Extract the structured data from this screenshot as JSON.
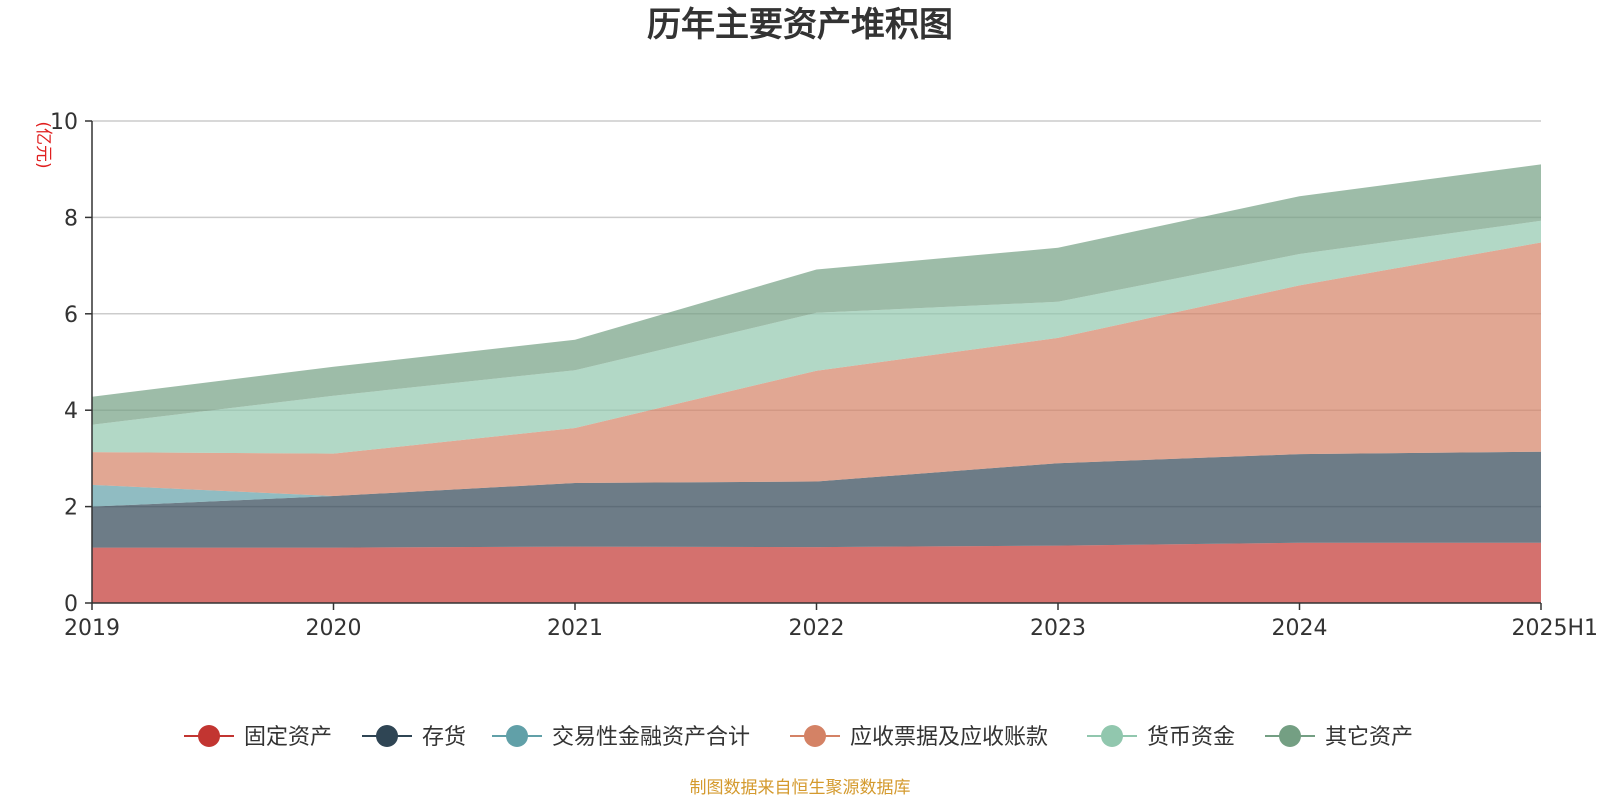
{
  "chart_data": {
    "type": "area",
    "stacked": true,
    "title": "历年主要资产堆积图",
    "ylabel": "(亿元)",
    "xlabel": "",
    "categories": [
      "2019",
      "2020",
      "2021",
      "2022",
      "2023",
      "2024",
      "2025H1"
    ],
    "y_ticks": [
      "0",
      "2",
      "4",
      "6",
      "8",
      "10"
    ],
    "ylim": [
      0,
      10
    ],
    "grid": true,
    "legend_position": "bottom",
    "series": [
      {
        "name": "固定资产",
        "color": "#c23531",
        "values": [
          1.15,
          1.15,
          1.17,
          1.16,
          1.19,
          1.25,
          1.25
        ]
      },
      {
        "name": "存货",
        "color": "#2f4554",
        "values": [
          0.85,
          1.07,
          1.32,
          1.36,
          1.71,
          1.84,
          1.89
        ]
      },
      {
        "name": "交易性金融资产合计",
        "color": "#61a0a8",
        "values": [
          0.45,
          0.0,
          0.0,
          0.0,
          0.0,
          0.0,
          0.0
        ]
      },
      {
        "name": "应收票据及应收账款",
        "color": "#d48265",
        "values": [
          0.68,
          0.88,
          1.14,
          2.3,
          2.6,
          3.5,
          4.34
        ]
      },
      {
        "name": "货币资金",
        "color": "#91c7ae",
        "values": [
          0.57,
          1.2,
          1.2,
          1.2,
          0.75,
          0.65,
          0.45
        ]
      },
      {
        "name": "其它资产",
        "color": "#749f83",
        "values": [
          0.58,
          0.6,
          0.63,
          0.9,
          1.12,
          1.2,
          1.17
        ]
      }
    ],
    "source": "制图数据来自恒生聚源数据库"
  }
}
